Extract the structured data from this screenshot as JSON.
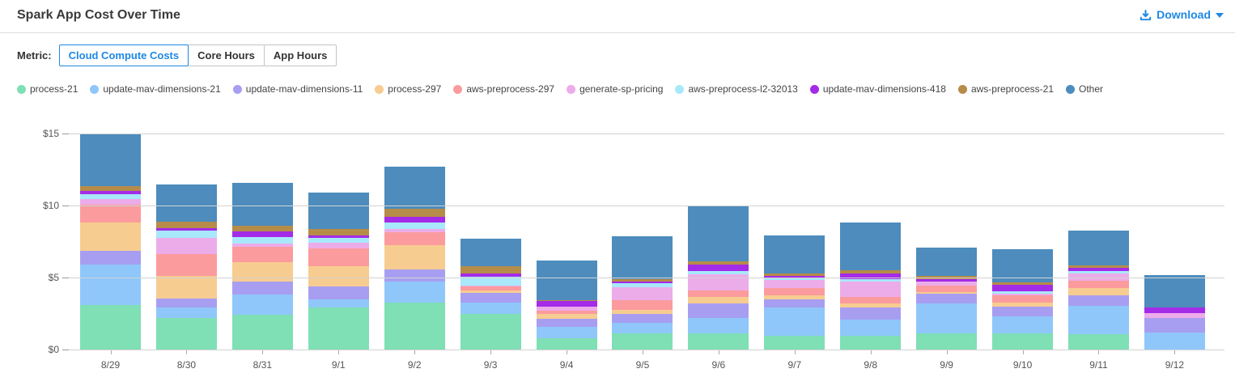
{
  "header": {
    "title": "Spark App Cost Over Time",
    "download_label": "Download"
  },
  "metric": {
    "label": "Metric:",
    "tabs": [
      {
        "label": "Cloud Compute Costs",
        "active": true
      },
      {
        "label": "Core Hours",
        "active": false
      },
      {
        "label": "App Hours",
        "active": false
      }
    ]
  },
  "colors": {
    "accent": "#1E88E5",
    "axis_text": "#555555",
    "gridline": "#d2d2d2"
  },
  "chart_data": {
    "type": "bar",
    "stacked": true,
    "title": "Spark App Cost Over Time",
    "xlabel": "",
    "ylabel": "",
    "ylim": [
      0,
      15
    ],
    "y_ticks": [
      {
        "value": 0,
        "label": "$0"
      },
      {
        "value": 5,
        "label": "$5"
      },
      {
        "value": 10,
        "label": "$10"
      },
      {
        "value": 15,
        "label": "$15"
      }
    ],
    "grid": true,
    "legend_position": "top",
    "categories": [
      "8/29",
      "8/30",
      "8/31",
      "9/1",
      "9/2",
      "9/3",
      "9/4",
      "9/5",
      "9/6",
      "9/7",
      "9/8",
      "9/9",
      "9/10",
      "9/11",
      "9/12"
    ],
    "series": [
      {
        "name": "process-21",
        "color": "#7FDFB5",
        "values": [
          3.1,
          2.2,
          2.4,
          2.9,
          3.25,
          2.5,
          0.8,
          1.1,
          1.1,
          0.95,
          0.95,
          1.1,
          1.1,
          1.05,
          0
        ]
      },
      {
        "name": "update-mav-dimensions-21",
        "color": "#8FC7FA",
        "values": [
          2.8,
          0.7,
          1.45,
          0.6,
          1.45,
          0.75,
          0.75,
          0.75,
          1.1,
          2.0,
          1.15,
          2.1,
          1.2,
          2.0,
          1.2
        ]
      },
      {
        "name": "update-mav-dimensions-11",
        "color": "#A89EF1",
        "values": [
          0.95,
          0.65,
          0.85,
          0.9,
          0.85,
          0.7,
          0.6,
          0.6,
          1.0,
          0.55,
          0.8,
          0.65,
          0.65,
          0.7,
          1.0
        ]
      },
      {
        "name": "process-297",
        "color": "#F7CC90",
        "values": [
          2.0,
          1.55,
          1.4,
          1.4,
          1.7,
          0.15,
          0.35,
          0.3,
          0.45,
          0.25,
          0.3,
          0.15,
          0.3,
          0.5,
          0
        ]
      },
      {
        "name": "aws-preprocess-297",
        "color": "#FB9B9D",
        "values": [
          1.2,
          1.55,
          1.05,
          1.25,
          0.9,
          0.25,
          0.2,
          0.65,
          0.45,
          0.5,
          0.45,
          0.45,
          0.5,
          0.55,
          0
        ]
      },
      {
        "name": "generate-sp-pricing",
        "color": "#ECACE9",
        "values": [
          0.4,
          1.1,
          0.2,
          0.35,
          0.2,
          0.1,
          0.25,
          0.9,
          1.15,
          0.6,
          1.1,
          0.25,
          0.1,
          0.5,
          0.35
        ]
      },
      {
        "name": "aws-preprocess-l2-32013",
        "color": "#A8E8FA",
        "values": [
          0.35,
          0.5,
          0.45,
          0.35,
          0.45,
          0.6,
          0,
          0.3,
          0.2,
          0.1,
          0.15,
          0,
          0.2,
          0.15,
          0
        ]
      },
      {
        "name": "update-mav-dimensions-418",
        "color": "#A42BE8",
        "values": [
          0.2,
          0.15,
          0.4,
          0.15,
          0.4,
          0.2,
          0.4,
          0.1,
          0.45,
          0.15,
          0.4,
          0.2,
          0.45,
          0.2,
          0.35
        ]
      },
      {
        "name": "aws-preprocess-21",
        "color": "#B68C49",
        "values": [
          0.35,
          0.45,
          0.4,
          0.45,
          0.55,
          0.5,
          0.1,
          0.2,
          0.2,
          0.2,
          0.2,
          0.2,
          0.15,
          0.2,
          0
        ]
      },
      {
        "name": "Other",
        "color": "#4D8CBD",
        "values": [
          3.65,
          2.6,
          3.0,
          2.55,
          2.95,
          1.95,
          2.7,
          2.95,
          3.9,
          2.6,
          3.3,
          1.95,
          2.3,
          2.4,
          2.25
        ]
      }
    ]
  }
}
